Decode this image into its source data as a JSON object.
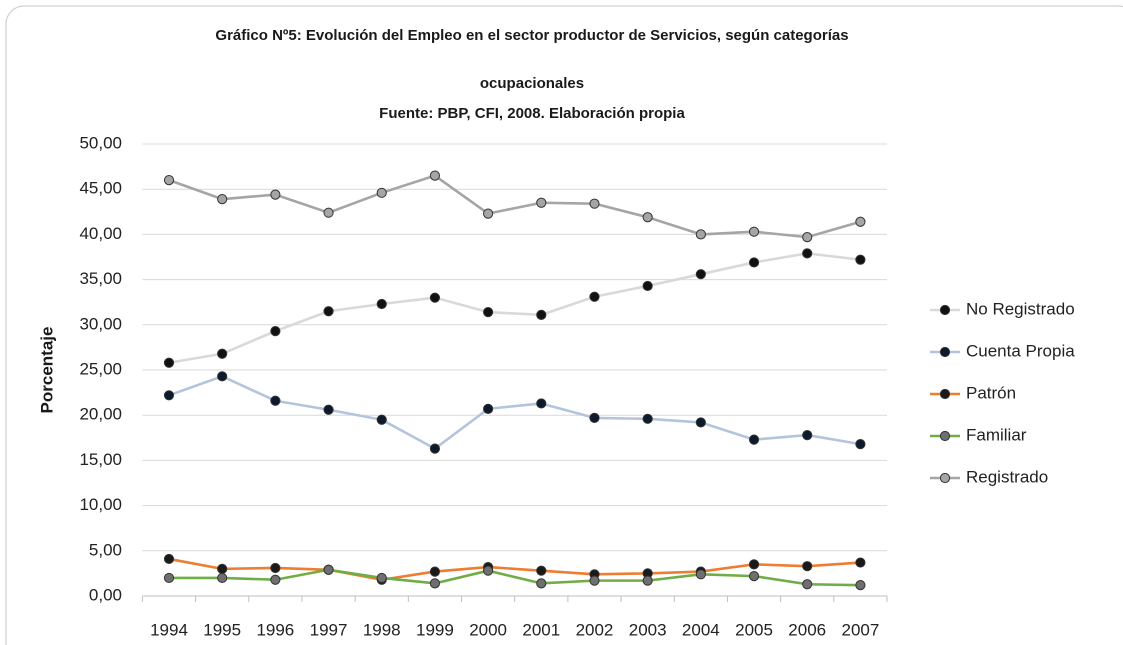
{
  "chart_data": {
    "type": "line",
    "title": [
      "Gráfico Nº5: Evolución del Empleo en el sector productor de Servicios, según categorías",
      "ocupacionales"
    ],
    "subtitle": "Fuente: PBP, CFI, 2008. Elaboración propia",
    "ylabel": "Porcentaje",
    "categories": [
      "1994",
      "1995",
      "1996",
      "1997",
      "1998",
      "1999",
      "2000",
      "2001",
      "2002",
      "2003",
      "2004",
      "2005",
      "2006",
      "2007"
    ],
    "series": [
      {
        "name": "No Registrado",
        "color": "#d9d9d9",
        "marker_color": "#111111",
        "values": [
          25.8,
          26.8,
          29.3,
          31.5,
          32.3,
          33.0,
          31.4,
          31.1,
          33.1,
          34.3,
          35.6,
          36.9,
          37.9,
          37.2
        ]
      },
      {
        "name": "Cuenta Propia",
        "color": "#b4c4dc",
        "marker_color": "#0d1a2b",
        "values": [
          22.2,
          24.3,
          21.6,
          20.6,
          19.5,
          16.3,
          20.7,
          21.3,
          19.7,
          19.6,
          19.2,
          17.3,
          17.8,
          16.8
        ]
      },
      {
        "name": "Patrón",
        "color": "#ed7d31",
        "marker_color": "#1a1a1a",
        "values": [
          4.1,
          3.0,
          3.1,
          2.9,
          1.8,
          2.7,
          3.2,
          2.8,
          2.4,
          2.5,
          2.7,
          3.5,
          3.3,
          3.7
        ]
      },
      {
        "name": "Familiar",
        "color": "#70ad47",
        "marker_color": "#6f6f6f",
        "values": [
          2.0,
          2.0,
          1.8,
          2.9,
          2.0,
          1.4,
          2.8,
          1.4,
          1.7,
          1.7,
          2.4,
          2.2,
          1.3,
          1.2
        ]
      },
      {
        "name": "Registrado",
        "color": "#a5a5a5",
        "marker_color": "#a5a5a5",
        "values": [
          46.0,
          43.9,
          44.4,
          42.4,
          44.6,
          46.5,
          42.3,
          43.5,
          43.4,
          41.9,
          40.0,
          40.3,
          39.7,
          41.4
        ]
      }
    ],
    "ylim": [
      0,
      50
    ],
    "yticks": [
      {
        "value": 0,
        "label": "0,00"
      },
      {
        "value": 5,
        "label": "5,00"
      },
      {
        "value": 10,
        "label": "10,00"
      },
      {
        "value": 15,
        "label": "15,00"
      },
      {
        "value": 20,
        "label": "20,00"
      },
      {
        "value": 25,
        "label": "25,00"
      },
      {
        "value": 30,
        "label": "30,00"
      },
      {
        "value": 35,
        "label": "35,00"
      },
      {
        "value": 40,
        "label": "40,00"
      },
      {
        "value": 45,
        "label": "45,00"
      },
      {
        "value": 50,
        "label": "50,00"
      }
    ],
    "grid": true,
    "legend": "right"
  }
}
